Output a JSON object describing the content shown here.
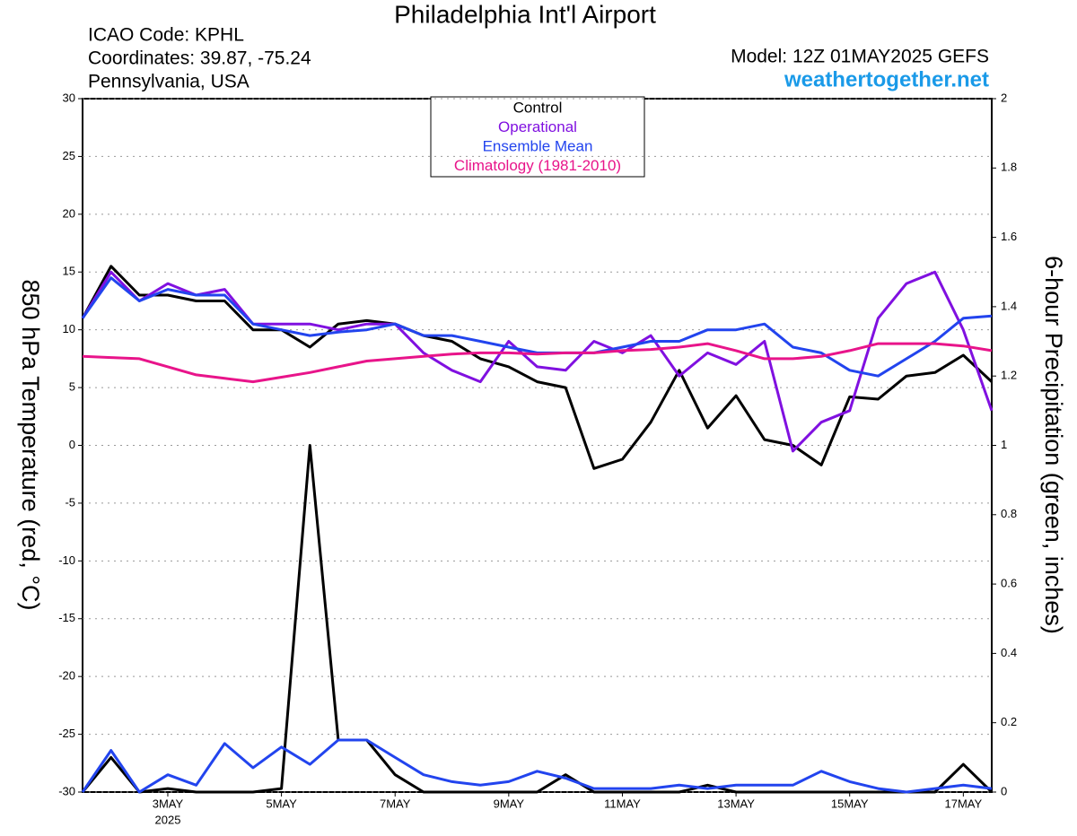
{
  "chart_data": {
    "type": "line",
    "title": "Philadelphia Int'l Airport",
    "info": [
      "ICAO Code: KPHL",
      "Coordinates: 39.87, -75.24",
      "Pennsylvania, USA"
    ],
    "model": "Model: 12Z 01MAY2025 GEFS",
    "site": "weathertogether.net",
    "y_label": "850 hPa Temperature (red, °C)",
    "y2_label": "6-hour Precipitation (green, inches)",
    "year": "2025",
    "categories": [
      null,
      null,
      null,
      "3MAY",
      null,
      null,
      null,
      "5MAY",
      null,
      null,
      null,
      "7MAY",
      null,
      null,
      null,
      "9MAY",
      null,
      null,
      null,
      "11MAY",
      null,
      null,
      null,
      "13MAY",
      null,
      null,
      null,
      "15MAY",
      null,
      null,
      null,
      "17MAY",
      null
    ],
    "ylim": [
      -30,
      30
    ],
    "yticks": [
      -30,
      -25,
      -20,
      -15,
      -10,
      -5,
      0,
      5,
      10,
      15,
      20,
      25,
      30
    ],
    "y2lim": [
      0,
      2
    ],
    "y2ticks": [
      0,
      0.2,
      0.4,
      0.6,
      0.8,
      1,
      1.2,
      1.4,
      1.6,
      1.8,
      2
    ],
    "grid": true,
    "series": [
      {
        "name": "Control",
        "color": "#000000",
        "values": [
          11,
          15.5,
          13,
          13,
          12.5,
          12.5,
          10,
          10,
          8.5,
          10.5,
          10.8,
          10.5,
          9.5,
          9,
          7.5,
          6.8,
          5.5,
          5,
          -2,
          -1.2,
          2,
          6.5,
          1.5,
          4.3,
          0.5,
          0,
          -1.7,
          4.2,
          4,
          6,
          6.3,
          7.8,
          5.5
        ]
      },
      {
        "name": "Operational",
        "color": "#8010e0",
        "values": [
          11,
          15,
          12.5,
          14,
          13,
          13.5,
          10.5,
          10.5,
          10.5,
          10,
          10.5,
          10.5,
          8,
          6.5,
          5.5,
          9,
          6.8,
          6.5,
          9,
          8,
          9.5,
          6,
          8,
          7,
          9,
          -0.5,
          2,
          3,
          11,
          14,
          15,
          10,
          3
        ]
      },
      {
        "name": "Ensemble Mean",
        "color": "#2244ee",
        "values": [
          11,
          14.5,
          12.5,
          13.5,
          13,
          13,
          10.5,
          10,
          9.5,
          9.8,
          10,
          10.5,
          9.5,
          9.5,
          9,
          8.5,
          8,
          8,
          8,
          8.5,
          9,
          9,
          10,
          10,
          10.5,
          8.5,
          8,
          6.5,
          6,
          7.5,
          9,
          11,
          11.2
        ]
      },
      {
        "name": "Climatology (1981-2010)",
        "color": "#e8148a",
        "values": [
          7.7,
          7.6,
          7.5,
          6.8,
          6.1,
          5.8,
          5.5,
          5.9,
          6.3,
          6.8,
          7.3,
          7.5,
          7.7,
          7.9,
          8,
          8,
          7.9,
          8,
          8,
          8.2,
          8.3,
          8.5,
          8.8,
          8.2,
          7.5,
          7.5,
          7.7,
          8.2,
          8.8,
          8.8,
          8.8,
          8.6,
          8.2
        ]
      },
      {
        "name": "Control",
        "color": "#000000",
        "axis": "y2",
        "values": [
          0,
          0.1,
          0,
          0.01,
          0,
          0,
          0,
          0.01,
          1,
          0.15,
          0.15,
          0.05,
          0,
          0,
          0,
          0,
          0,
          0.05,
          0,
          0,
          0,
          0,
          0.02,
          0,
          0,
          0,
          0,
          0,
          0,
          0,
          0,
          0.08,
          0
        ]
      },
      {
        "name": "Ensemble Mean",
        "color": "#2244ee",
        "axis": "y2",
        "values": [
          0,
          0.12,
          0,
          0.05,
          0.02,
          0.14,
          0.07,
          0.13,
          0.08,
          0.15,
          0.15,
          0.1,
          0.05,
          0.03,
          0.02,
          0.03,
          0.06,
          0.04,
          0.01,
          0.01,
          0.01,
          0.02,
          0.01,
          0.02,
          0.02,
          0.02,
          0.06,
          0.03,
          0.01,
          0,
          0.01,
          0.02,
          0.01
        ]
      }
    ]
  }
}
